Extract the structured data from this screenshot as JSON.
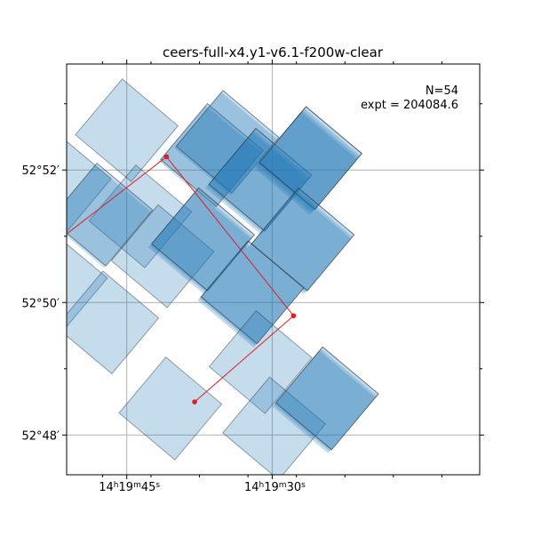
{
  "chart_data": {
    "type": "footprint",
    "title": "ceers-full-x4.y1-v6.1-f200w-clear",
    "annotation": {
      "line1": "N=54",
      "line2": "expt = 204084.6"
    },
    "xlabel": "",
    "ylabel": "",
    "x_axis": "right ascension (decreasing to the right)",
    "x_ticks": [
      {
        "value": "14:19:45",
        "label_h": "14",
        "label_m": "19",
        "label_s": "45",
        "sup_h": "h",
        "sup_m": "m",
        "sup_s": "s"
      },
      {
        "value": "14:19:30",
        "label_h": "14",
        "label_m": "19",
        "label_s": "30",
        "sup_h": "h",
        "sup_m": "m",
        "sup_s": "s"
      }
    ],
    "y_ticks": [
      {
        "value_arcmin": 52,
        "label": "52°52′"
      },
      {
        "value_arcmin": 50,
        "label": "52°50′"
      },
      {
        "value_arcmin": 48,
        "label": "52°48′"
      }
    ],
    "xlim_seconds": [
      51.2,
      8.6
    ],
    "ylim_arcmin": [
      47.4,
      53.6
    ],
    "grid": true,
    "exposure_color": "#1f77b4",
    "path_color": "#e41a1c",
    "tiles": [
      {
        "ra_s": 51.9,
        "dec": 51.8,
        "depth": 1
      },
      {
        "ra_s": 45.0,
        "dec": 52.6,
        "depth": 1
      },
      {
        "ra_s": 43.6,
        "dec": 51.3,
        "depth": 1
      },
      {
        "ra_s": 52.3,
        "dec": 50.3,
        "depth": 1
      },
      {
        "ra_s": 47.8,
        "dec": 51.3,
        "depth": 2
      },
      {
        "ra_s": 41.3,
        "dec": 50.7,
        "depth": 1
      },
      {
        "ra_s": 47.0,
        "dec": 49.7,
        "depth": 1
      },
      {
        "ra_s": 36.4,
        "dec": 52.2,
        "depth": 2
      },
      {
        "ra_s": 34.8,
        "dec": 52.4,
        "depth": 2
      },
      {
        "ra_s": 31.6,
        "dec": 51.8,
        "depth": 3
      },
      {
        "ra_s": 37.5,
        "dec": 50.9,
        "depth": 3
      },
      {
        "ra_s": 26.6,
        "dec": 52.1,
        "depth": 4
      },
      {
        "ra_s": 27.2,
        "dec": 50.9,
        "depth": 3
      },
      {
        "ra_s": 32.4,
        "dec": 50.1,
        "depth": 3
      },
      {
        "ra_s": 31.2,
        "dec": 49.1,
        "depth": 1
      },
      {
        "ra_s": 40.5,
        "dec": 48.4,
        "depth": 1
      },
      {
        "ra_s": 29.8,
        "dec": 48.1,
        "depth": 1
      },
      {
        "ra_s": 24.7,
        "dec": 48.5,
        "depth": 3
      }
    ],
    "path_points": [
      {
        "ra_s": 51.5,
        "dec": 51.0
      },
      {
        "ra_s": 40.9,
        "dec": 52.2
      },
      {
        "ra_s": 27.8,
        "dec": 49.8
      },
      {
        "ra_s": 38.0,
        "dec": 48.5
      }
    ]
  }
}
